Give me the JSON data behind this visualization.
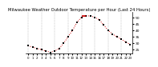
{
  "title": "Milwaukee Weather Outdoor Temperature per Hour (Last 24 Hours)",
  "hours": [
    0,
    1,
    2,
    3,
    4,
    5,
    6,
    7,
    8,
    9,
    10,
    11,
    12,
    13,
    14,
    15,
    16,
    17,
    18,
    19,
    20,
    21,
    22,
    23
  ],
  "temps": [
    28,
    27,
    26,
    25,
    24,
    23,
    24,
    26,
    30,
    35,
    40,
    46,
    50,
    51,
    51,
    50,
    48,
    44,
    40,
    37,
    35,
    33,
    31,
    29
  ],
  "line_color": "#cc0000",
  "marker_color": "#000000",
  "bg_color": "#ffffff",
  "grid_color": "#999999",
  "ylim": [
    22,
    54
  ],
  "ytick_vals": [
    25,
    30,
    35,
    40,
    45,
    50
  ],
  "ytick_labels": [
    "25",
    "30",
    "35",
    "40",
    "45",
    "50"
  ],
  "xlim": [
    -0.5,
    23.5
  ],
  "peak_val": 51,
  "peak_start": 12,
  "peak_end": 13,
  "title_fontsize": 3.8,
  "tick_fontsize": 3.2,
  "line_width": 0.7,
  "marker_size": 1.8,
  "grid_lw": 0.35
}
